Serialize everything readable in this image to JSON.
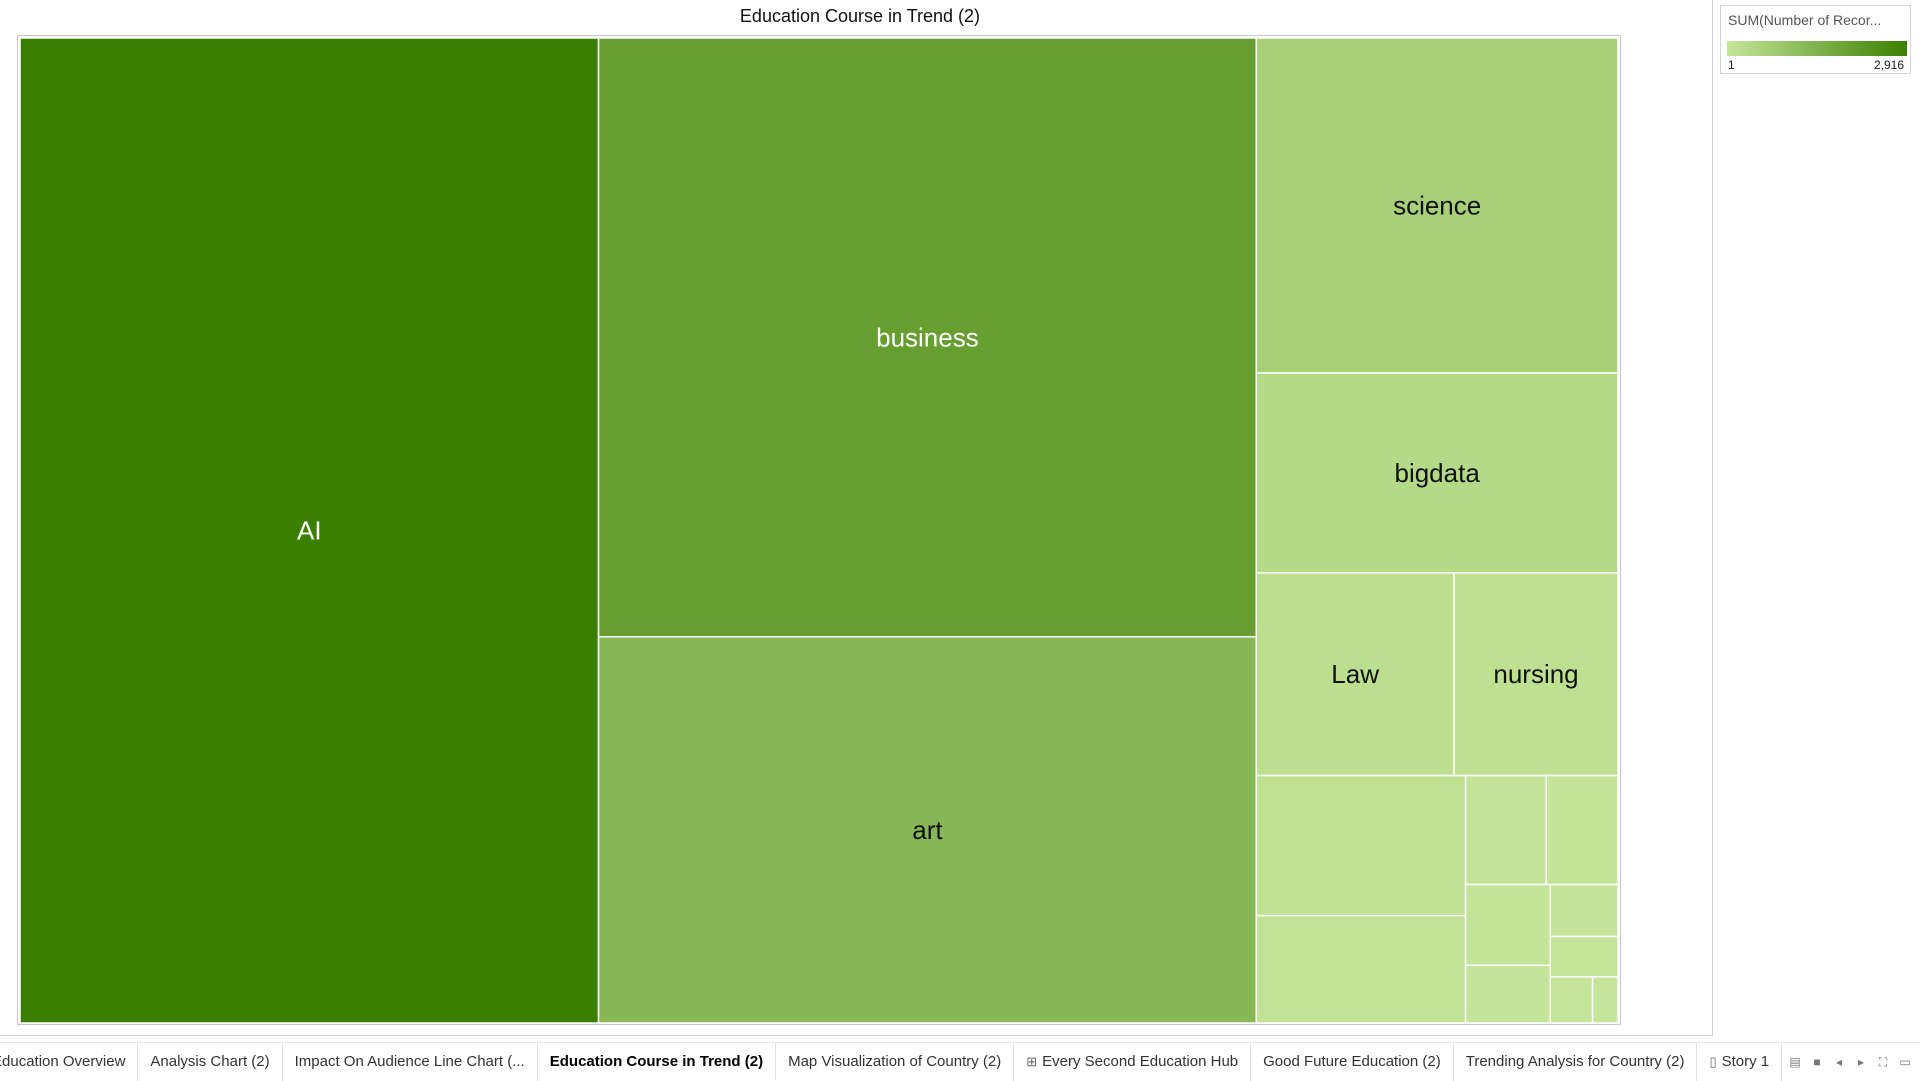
{
  "chart_data": {
    "type": "treemap",
    "title": "Education Course in Trend (2)",
    "legend": {
      "title": "SUM(Number of Recor...",
      "min_label": "1",
      "max_label": "2,916",
      "color_min": "#c5e69a",
      "color_max": "#3b7f00",
      "placement": "top-right"
    },
    "items": [
      {
        "label": "AI",
        "value": 2916
      },
      {
        "label": "business",
        "value": 2015
      },
      {
        "label": "art",
        "value": 1300
      },
      {
        "label": "science",
        "value": 620
      },
      {
        "label": "bigdata",
        "value": 370
      },
      {
        "label": "Law",
        "value": 205
      },
      {
        "label": "nursing",
        "value": 170
      },
      {
        "label": "",
        "value": 150
      },
      {
        "label": "",
        "value": 115
      },
      {
        "label": "",
        "value": 45
      },
      {
        "label": "",
        "value": 40
      },
      {
        "label": "",
        "value": 35
      },
      {
        "label": "",
        "value": 25
      },
      {
        "label": "",
        "value": 18
      },
      {
        "label": "",
        "value": 14
      },
      {
        "label": "",
        "value": 10
      },
      {
        "label": "",
        "value": 6
      }
    ]
  },
  "tabs": [
    {
      "label": "Education Overview",
      "icon": ""
    },
    {
      "label": "Analysis Chart (2)",
      "icon": ""
    },
    {
      "label": "Impact On Audience Line Chart (...",
      "icon": ""
    },
    {
      "label": "Education Course in Trend (2)",
      "icon": "",
      "active": true
    },
    {
      "label": "Map Visualization of Country (2)",
      "icon": ""
    },
    {
      "label": "Every Second Education Hub",
      "icon": "dashboard-icon"
    },
    {
      "label": "Good Future Education (2)",
      "icon": ""
    },
    {
      "label": "Trending Analysis for Country (2)",
      "icon": ""
    },
    {
      "label": "Story 1",
      "icon": "story-icon"
    }
  ],
  "controls": [
    "show-sheet-sorter-icon",
    "show-filmstrip-icon",
    "previous-sheet-icon",
    "next-sheet-icon",
    "fit-icon",
    "presentation-mode-icon"
  ]
}
